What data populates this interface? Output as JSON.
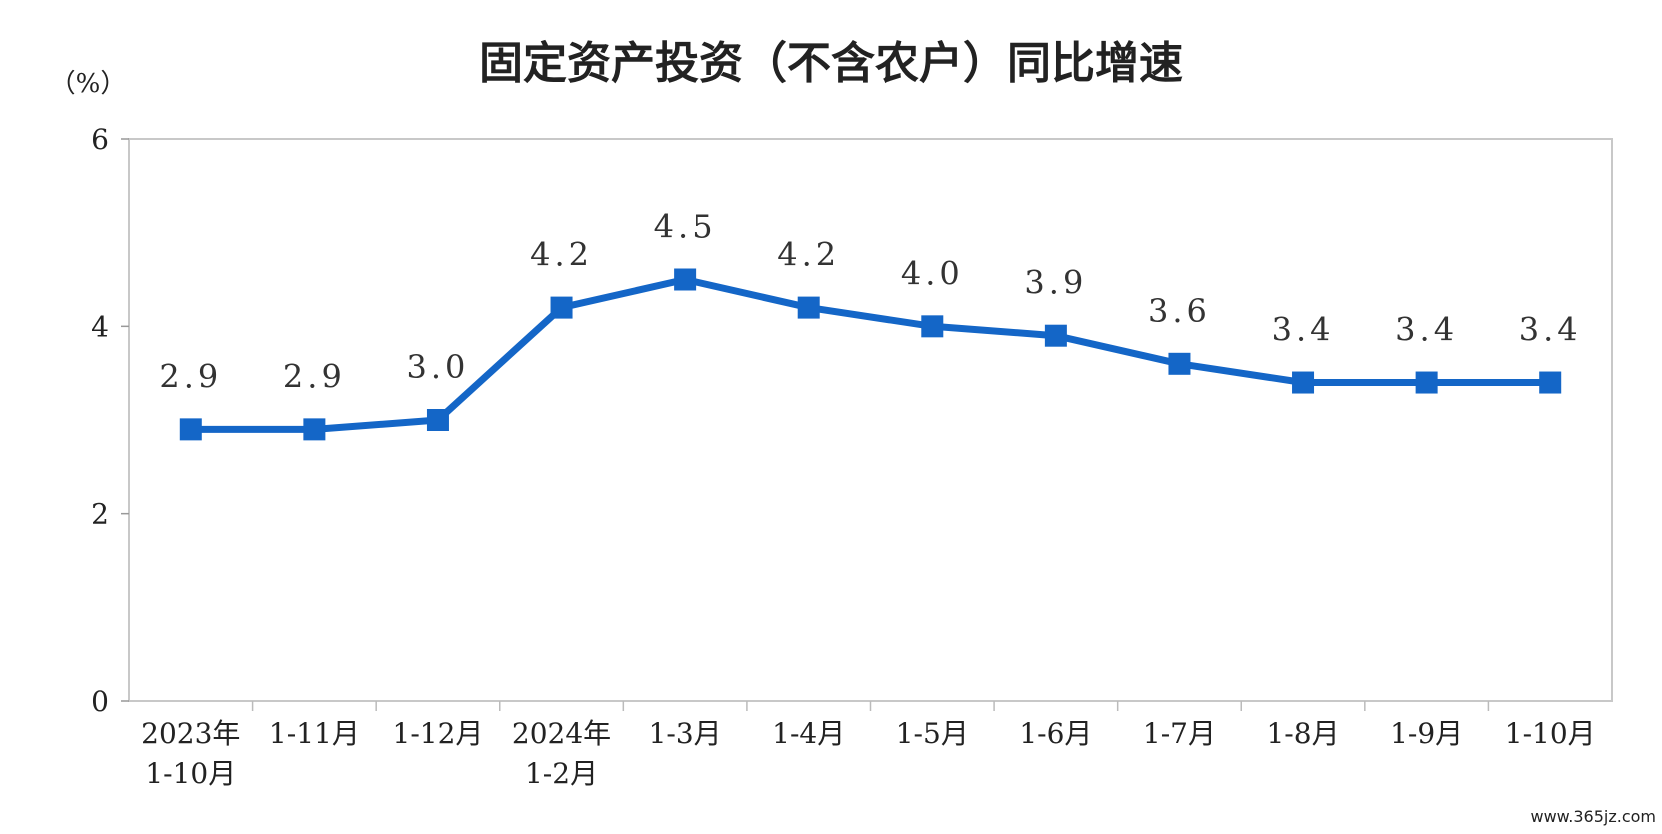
{
  "chart_data": {
    "type": "line",
    "title": "固定资产投资（不含农户）同比增速",
    "unit_label": "（%）",
    "categories": [
      [
        "2023年",
        "1-10月"
      ],
      [
        "1-11月"
      ],
      [
        "1-12月"
      ],
      [
        "2024年",
        "1-2月"
      ],
      [
        "1-3月"
      ],
      [
        "1-4月"
      ],
      [
        "1-5月"
      ],
      [
        "1-6月"
      ],
      [
        "1-7月"
      ],
      [
        "1-8月"
      ],
      [
        "1-9月"
      ],
      [
        "1-10月"
      ]
    ],
    "values": [
      2.9,
      2.9,
      3.0,
      4.2,
      4.5,
      4.2,
      4.0,
      3.9,
      3.6,
      3.4,
      3.4,
      3.4
    ],
    "data_labels": [
      "2.9",
      "2.9",
      "3.0",
      "4.2",
      "4.5",
      "4.2",
      "4.0",
      "3.9",
      "3.6",
      "3.4",
      "3.4",
      "3.4"
    ],
    "yticks": [
      "0",
      "2",
      "4",
      "6"
    ],
    "ylim": [
      0,
      6
    ],
    "grid": false,
    "legend": "none",
    "line_color": "#1466c7",
    "marker": "square"
  },
  "watermark": "www.365jz.com"
}
